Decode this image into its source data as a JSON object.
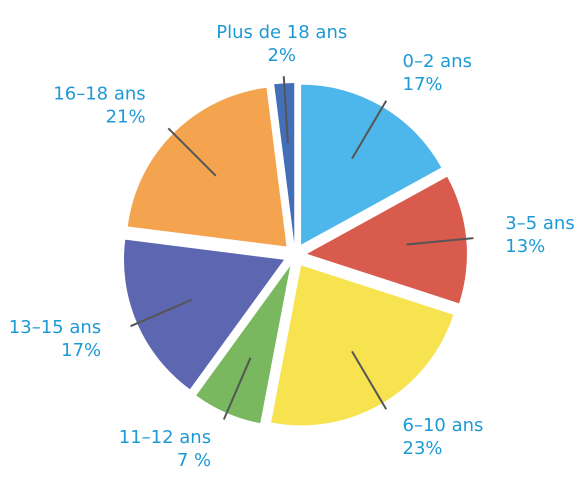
{
  "chart_data": {
    "type": "pie",
    "categories": [
      "0–2 ans",
      "3–5 ans",
      "6–10 ans",
      "11–12 ans",
      "13–15 ans",
      "16–18 ans",
      "Plus de 18 ans"
    ],
    "values": [
      17,
      13,
      23,
      7,
      17,
      21,
      2
    ],
    "value_labels": [
      "17%",
      "13%",
      "23%",
      "7 %",
      "17%",
      "21%",
      "2%"
    ],
    "colors": [
      "#3aaee8",
      "#d4493a",
      "#f5e03c",
      "#6ab04c",
      "#4a55a8",
      "#f39a3c",
      "#2f5fb0"
    ]
  }
}
